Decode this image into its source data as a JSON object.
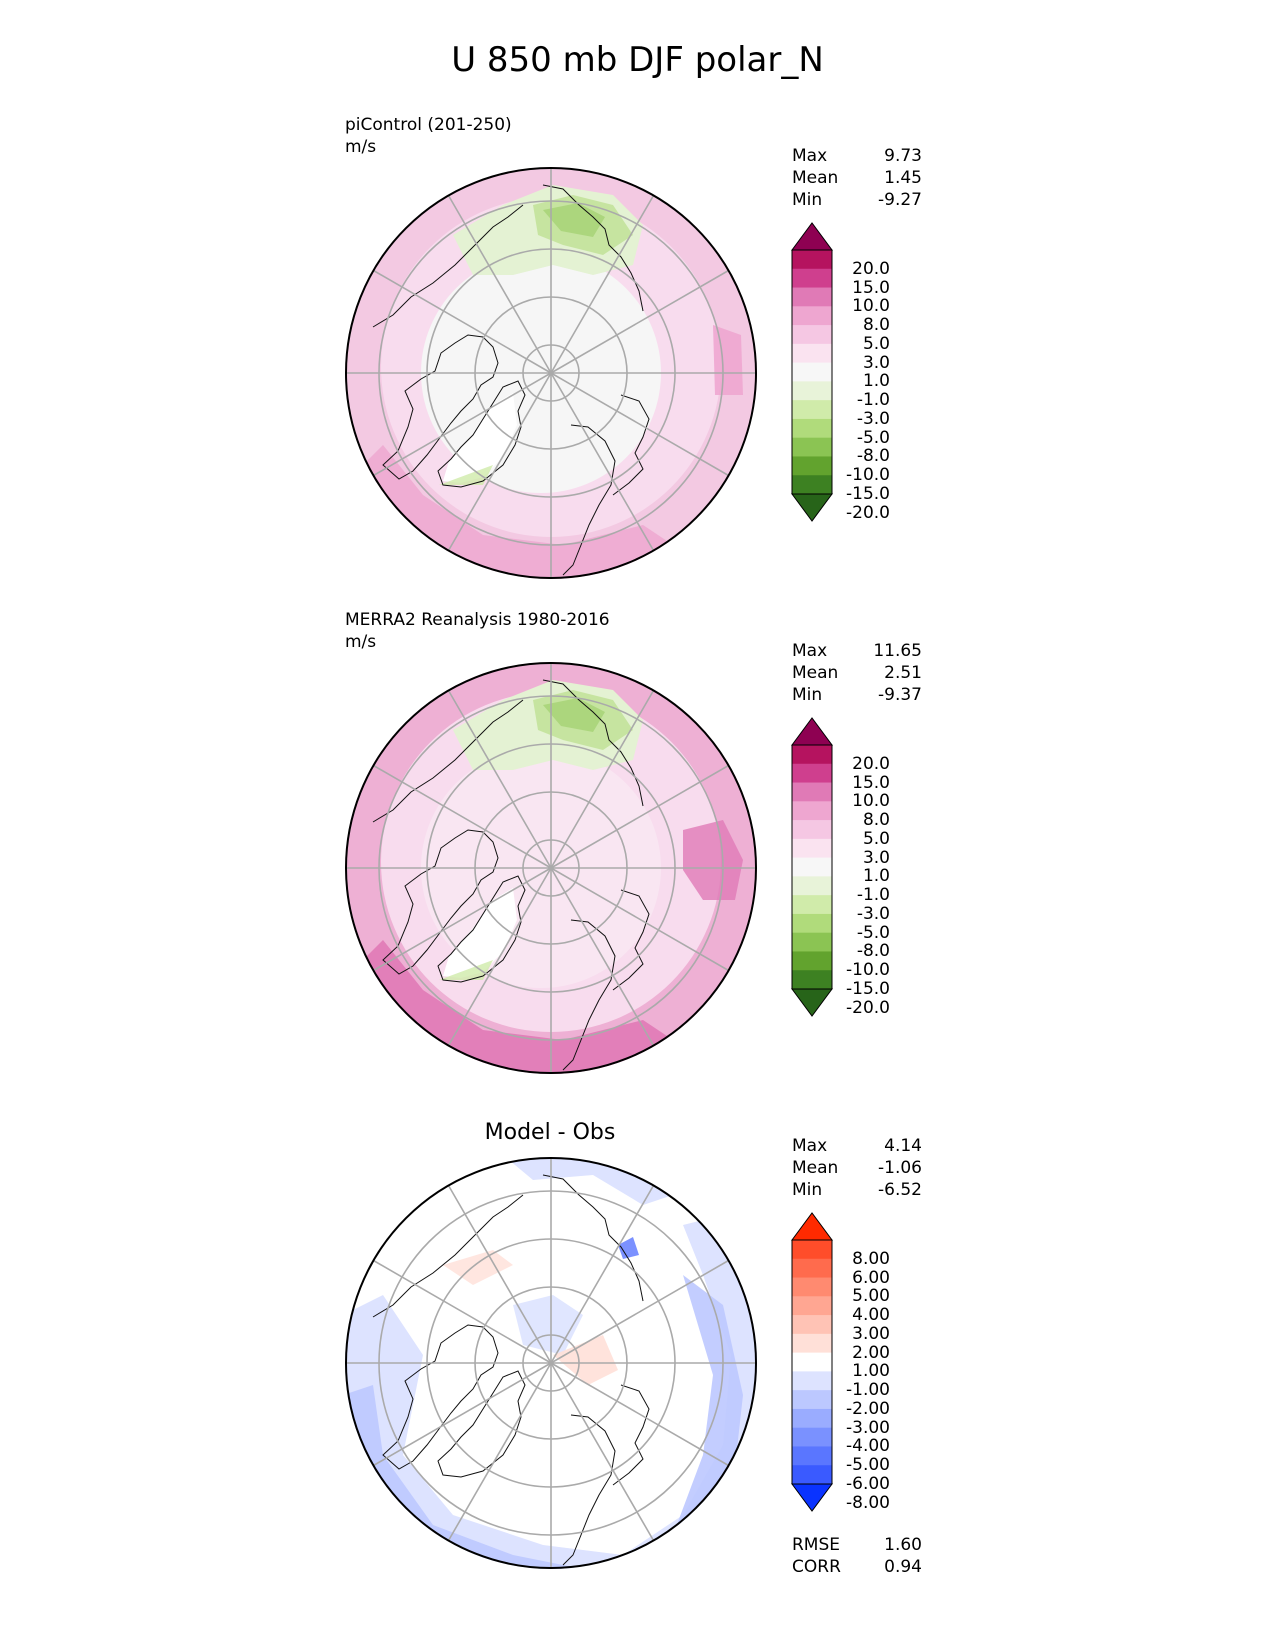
{
  "title": "U 850 mb DJF polar_N",
  "panels": [
    {
      "label_line1": "piControl (201-250)",
      "label_line2": "m/s",
      "center_title": "",
      "stats": [
        {
          "label": "Max",
          "value": "9.73"
        },
        {
          "label": "Mean",
          "value": "1.45"
        },
        {
          "label": "Min",
          "value": "-9.27"
        }
      ],
      "colorbar": {
        "labels": [
          "20.0",
          "15.0",
          "10.0",
          "8.0",
          "5.0",
          "3.0",
          "1.0",
          "-1.0",
          "-3.0",
          "-5.0",
          "-8.0",
          "-10.0",
          "-15.0",
          "-20.0"
        ],
        "colors": [
          "#8e0152",
          "#b5135f",
          "#cf3f8e",
          "#e07ab6",
          "#eea6d0",
          "#f5c7e3",
          "#fae3f0",
          "#f7f7f7",
          "#e8f3d9",
          "#d0ebaa",
          "#b0db7b",
          "#8bc453",
          "#62a32e",
          "#3d8122",
          "#276419"
        ]
      }
    },
    {
      "label_line1": "MERRA2 Reanalysis 1980-2016",
      "label_line2": "m/s",
      "center_title": "",
      "stats": [
        {
          "label": "Max",
          "value": "11.65"
        },
        {
          "label": "Mean",
          "value": "2.51"
        },
        {
          "label": "Min",
          "value": "-9.37"
        }
      ],
      "colorbar": {
        "labels": [
          "20.0",
          "15.0",
          "10.0",
          "8.0",
          "5.0",
          "3.0",
          "1.0",
          "-1.0",
          "-3.0",
          "-5.0",
          "-8.0",
          "-10.0",
          "-15.0",
          "-20.0"
        ],
        "colors": [
          "#8e0152",
          "#b5135f",
          "#cf3f8e",
          "#e07ab6",
          "#eea6d0",
          "#f5c7e3",
          "#fae3f0",
          "#f7f7f7",
          "#e8f3d9",
          "#d0ebaa",
          "#b0db7b",
          "#8bc453",
          "#62a32e",
          "#3d8122",
          "#276419"
        ]
      }
    },
    {
      "label_line1": "",
      "label_line2": "",
      "center_title": "Model - Obs",
      "stats": [
        {
          "label": "Max",
          "value": "4.14"
        },
        {
          "label": "Mean",
          "value": "-1.06"
        },
        {
          "label": "Min",
          "value": "-6.52"
        }
      ],
      "colorbar": {
        "labels": [
          "8.00",
          "6.00",
          "5.00",
          "4.00",
          "3.00",
          "2.00",
          "1.00",
          "-1.00",
          "-2.00",
          "-3.00",
          "-4.00",
          "-5.00",
          "-6.00",
          "-8.00"
        ],
        "colors": [
          "#ff2a00",
          "#ff4d2a",
          "#ff6b4d",
          "#ff8a70",
          "#ffa692",
          "#ffc3b5",
          "#ffe0d8",
          "#ffffff",
          "#dde3ff",
          "#bcc8ff",
          "#9aacff",
          "#7a91ff",
          "#5a76ff",
          "#3a5aff",
          "#0a33ff"
        ]
      },
      "footer": [
        {
          "label": "RMSE",
          "value": "1.60"
        },
        {
          "label": "CORR",
          "value": "0.94"
        }
      ]
    }
  ]
}
